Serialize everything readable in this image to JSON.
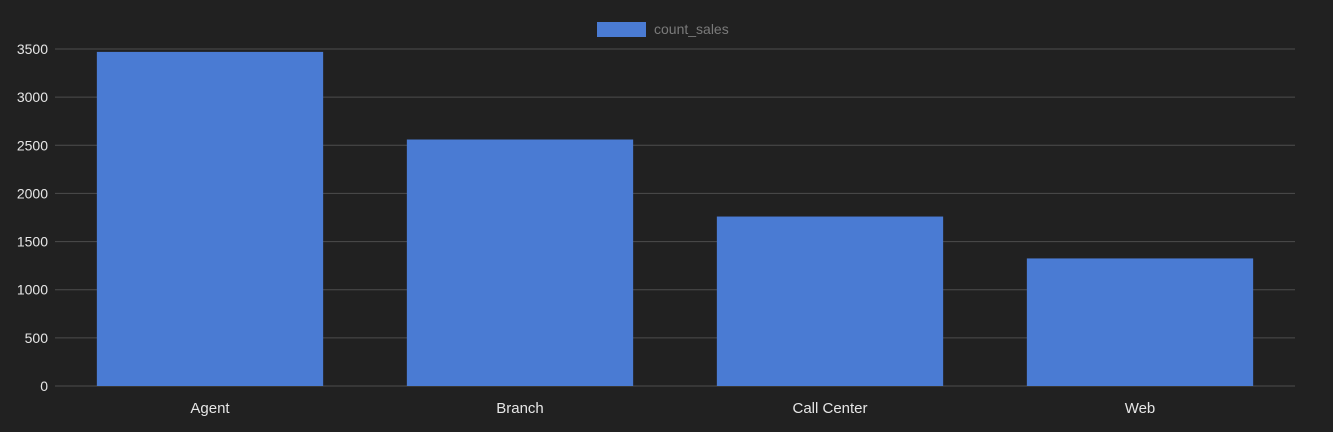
{
  "chart_data": {
    "type": "bar",
    "categories": [
      "Agent",
      "Branch",
      "Call Center",
      "Web"
    ],
    "series": [
      {
        "name": "count_sales",
        "values": [
          3470,
          2560,
          1760,
          1325
        ]
      }
    ],
    "ylim": [
      0,
      3500
    ],
    "yticks": [
      0,
      500,
      1000,
      1500,
      2000,
      2500,
      3000,
      3500
    ],
    "grid": true,
    "legend": "top-center"
  },
  "colors": {
    "background": "#212121",
    "bar": "#4a7bd3",
    "grid": "#4d4d4d",
    "axis_text": "#e6e6e6",
    "legend_text": "#7a7a7a"
  }
}
